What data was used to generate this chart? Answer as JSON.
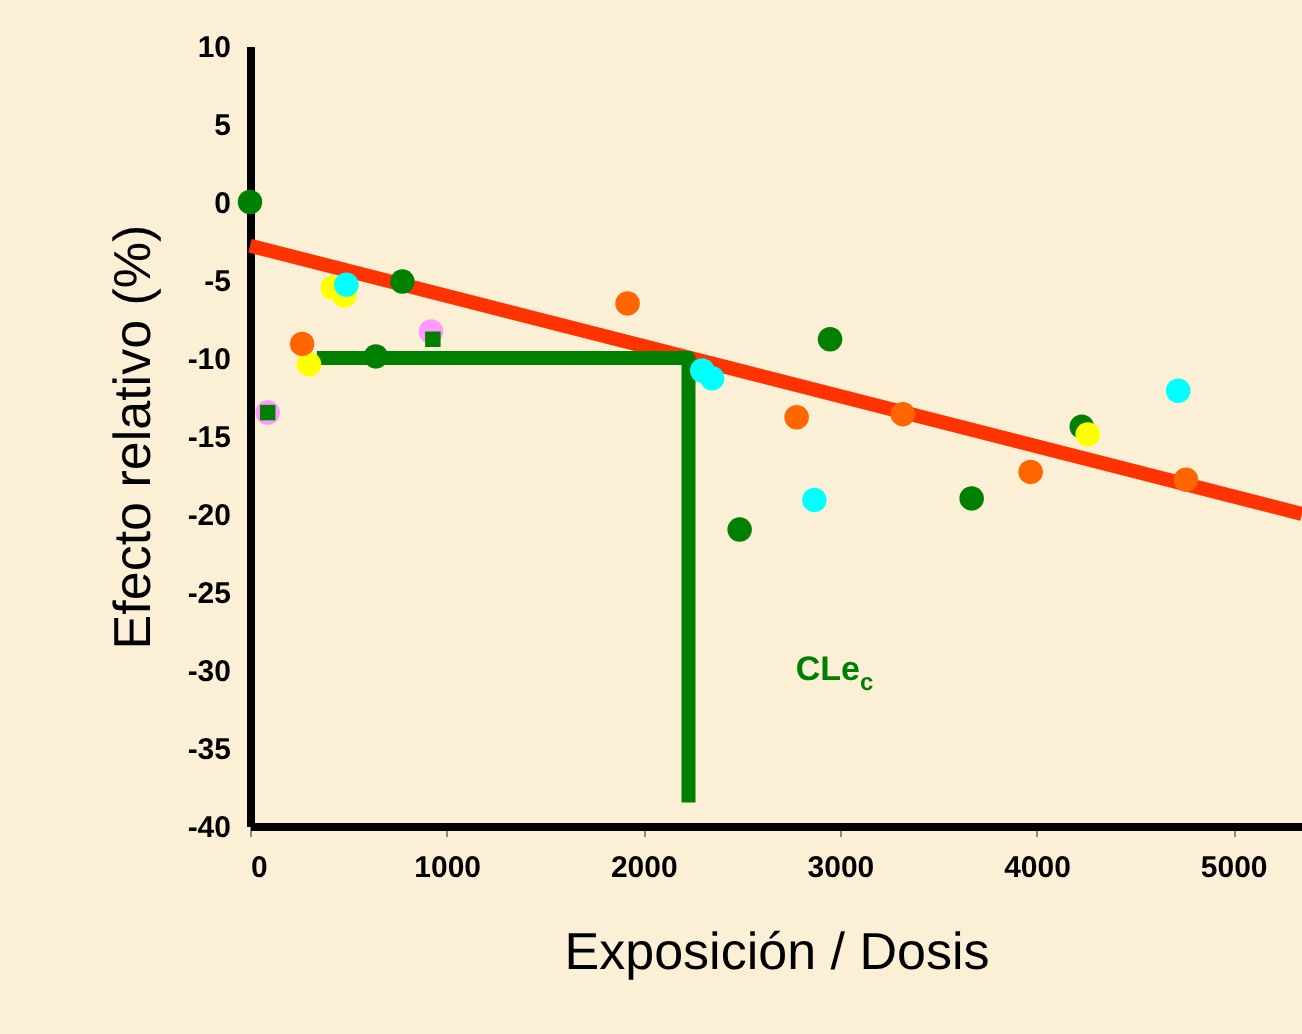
{
  "chart_data": {
    "type": "scatter",
    "xlabel": "Exposición / Dosis",
    "ylabel": "Efecto relativo (%)",
    "xlim": [
      0,
      5350
    ],
    "xticks": [
      0,
      1000,
      2000,
      3000,
      4000,
      5000
    ],
    "ylim": [
      -40,
      10
    ],
    "yticks": [
      10,
      5,
      0,
      -5,
      -10,
      -15,
      -20,
      -25,
      -30,
      -35,
      -40
    ],
    "grid": false,
    "series": [
      {
        "type": "line",
        "color": "#ff3300",
        "x": [
          0,
          5350
        ],
        "values": [
          -2.8,
          -20
        ],
        "marker": "none"
      },
      {
        "type": "line",
        "color": "#008000",
        "x": [
          340,
          2230,
          2230
        ],
        "values": [
          -10,
          -10,
          -38.5
        ],
        "marker": "none"
      },
      {
        "color": "#008000",
        "marker": "circle",
        "x": [
          0,
          775,
          640,
          2490,
          2950,
          3670,
          4230
        ],
        "values": [
          0,
          -5.1,
          -9.9,
          -21.0,
          -8.8,
          -19.0,
          -14.4
        ]
      },
      {
        "color": "#ffff00",
        "marker": "circle",
        "x": [
          420,
          480,
          300,
          4260
        ],
        "values": [
          -5.5,
          -6.0,
          -10.4,
          -14.9
        ]
      },
      {
        "color": "#00ffff",
        "marker": "circle",
        "x": [
          490,
          2300,
          2350,
          2870,
          4720
        ],
        "values": [
          -5.3,
          -10.8,
          -11.3,
          -19.1,
          -12.1
        ]
      },
      {
        "color": "#ff6600",
        "marker": "circle",
        "x": [
          265,
          1920,
          2780,
          3320,
          3970,
          4760
        ],
        "values": [
          -9.1,
          -6.5,
          -13.8,
          -13.6,
          -17.3,
          -17.8
        ]
      },
      {
        "color": "#ff99ff",
        "marker": "circle",
        "x": [
          90,
          920
        ],
        "values": [
          -13.5,
          -8.3
        ]
      },
      {
        "color": "#008000",
        "marker": "square",
        "x": [
          90,
          930
        ],
        "values": [
          -13.5,
          -8.8
        ]
      }
    ],
    "annotations": [
      "CLe$_{c}$"
    ]
  }
}
